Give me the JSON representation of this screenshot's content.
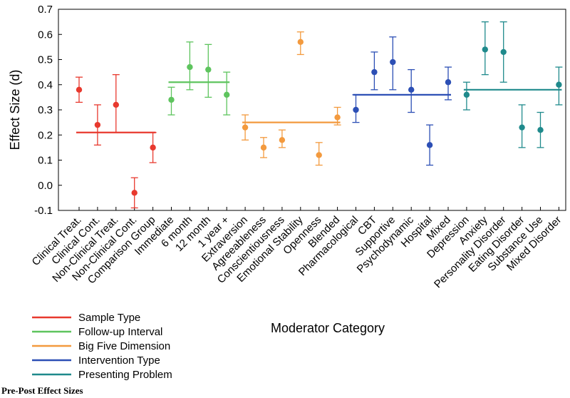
{
  "chart_data": {
    "type": "scatter",
    "ylabel": "Effect Size (d)",
    "xlabel": "Moderator Category",
    "ylim": [
      -0.1,
      0.7
    ],
    "yticks": [
      "-0.1",
      "0.0",
      "0.1",
      "0.2",
      "0.3",
      "0.4",
      "0.5",
      "0.6",
      "0.7"
    ],
    "grid": false,
    "legend_position": "bottom-left",
    "categories": [
      "Clinical Treat.",
      "Clinical Cont.",
      "Non-Clinical Treat.",
      "Non-Clinical Cont.",
      "Comparison Group",
      "Immediate",
      "6 month",
      "12 month",
      "1 year +",
      "Extraversion",
      "Agreeableness",
      "Conscientiousness",
      "Emotional Stability",
      "Openness",
      "Blended",
      "Pharmacological",
      "CBT",
      "Supportive",
      "Psychodynamic",
      "Hospital",
      "Mixed",
      "Depression",
      "Anxiety",
      "Personality Disorder",
      "Eating Disorder",
      "Substance Use",
      "Mixed Disorder"
    ],
    "series": [
      {
        "name": "Sample Type",
        "color": "#e8392e",
        "categories": [
          "Clinical Treat.",
          "Clinical Cont.",
          "Non-Clinical Treat.",
          "Non-Clinical Cont.",
          "Comparison Group"
        ],
        "values": [
          0.38,
          0.24,
          0.32,
          -0.03,
          0.15
        ],
        "lower": [
          0.33,
          0.16,
          0.21,
          -0.09,
          0.09
        ],
        "upper": [
          0.43,
          0.32,
          0.44,
          0.03,
          0.21
        ],
        "mean": 0.21
      },
      {
        "name": "Follow-up Interval",
        "color": "#5ec45e",
        "categories": [
          "Immediate",
          "6 month",
          "12 month",
          "1 year +"
        ],
        "values": [
          0.34,
          0.47,
          0.46,
          0.36
        ],
        "lower": [
          0.28,
          0.38,
          0.35,
          0.28
        ],
        "upper": [
          0.39,
          0.57,
          0.56,
          0.45
        ],
        "mean": 0.41
      },
      {
        "name": "Big Five Dimension",
        "color": "#f39a3e",
        "categories": [
          "Extraversion",
          "Agreeableness",
          "Conscientiousness",
          "Emotional Stability",
          "Openness",
          "Blended"
        ],
        "values": [
          0.23,
          0.15,
          0.18,
          0.57,
          0.12,
          0.27
        ],
        "lower": [
          0.18,
          0.11,
          0.15,
          0.52,
          0.08,
          0.24
        ],
        "upper": [
          0.28,
          0.19,
          0.22,
          0.61,
          0.17,
          0.31
        ],
        "mean": 0.25
      },
      {
        "name": "Intervention Type",
        "color": "#2c4fb5",
        "categories": [
          "Pharmacological",
          "CBT",
          "Supportive",
          "Psychodynamic",
          "Hospital",
          "Mixed"
        ],
        "values": [
          0.3,
          0.45,
          0.49,
          0.38,
          0.16,
          0.41
        ],
        "lower": [
          0.25,
          0.38,
          0.38,
          0.29,
          0.08,
          0.34
        ],
        "upper": [
          0.36,
          0.53,
          0.59,
          0.46,
          0.24,
          0.47
        ],
        "mean": 0.36
      },
      {
        "name": "Presenting Problem",
        "color": "#1f8a8c",
        "categories": [
          "Depression",
          "Anxiety",
          "Personality Disorder",
          "Eating Disorder",
          "Substance Use",
          "Mixed Disorder"
        ],
        "values": [
          0.36,
          0.54,
          0.53,
          0.23,
          0.22,
          0.4
        ],
        "lower": [
          0.3,
          0.44,
          0.41,
          0.15,
          0.15,
          0.32
        ],
        "upper": [
          0.41,
          0.65,
          0.65,
          0.32,
          0.29,
          0.47
        ],
        "mean": 0.38
      }
    ]
  },
  "footnote": "Pre-Post Effect Sizes"
}
